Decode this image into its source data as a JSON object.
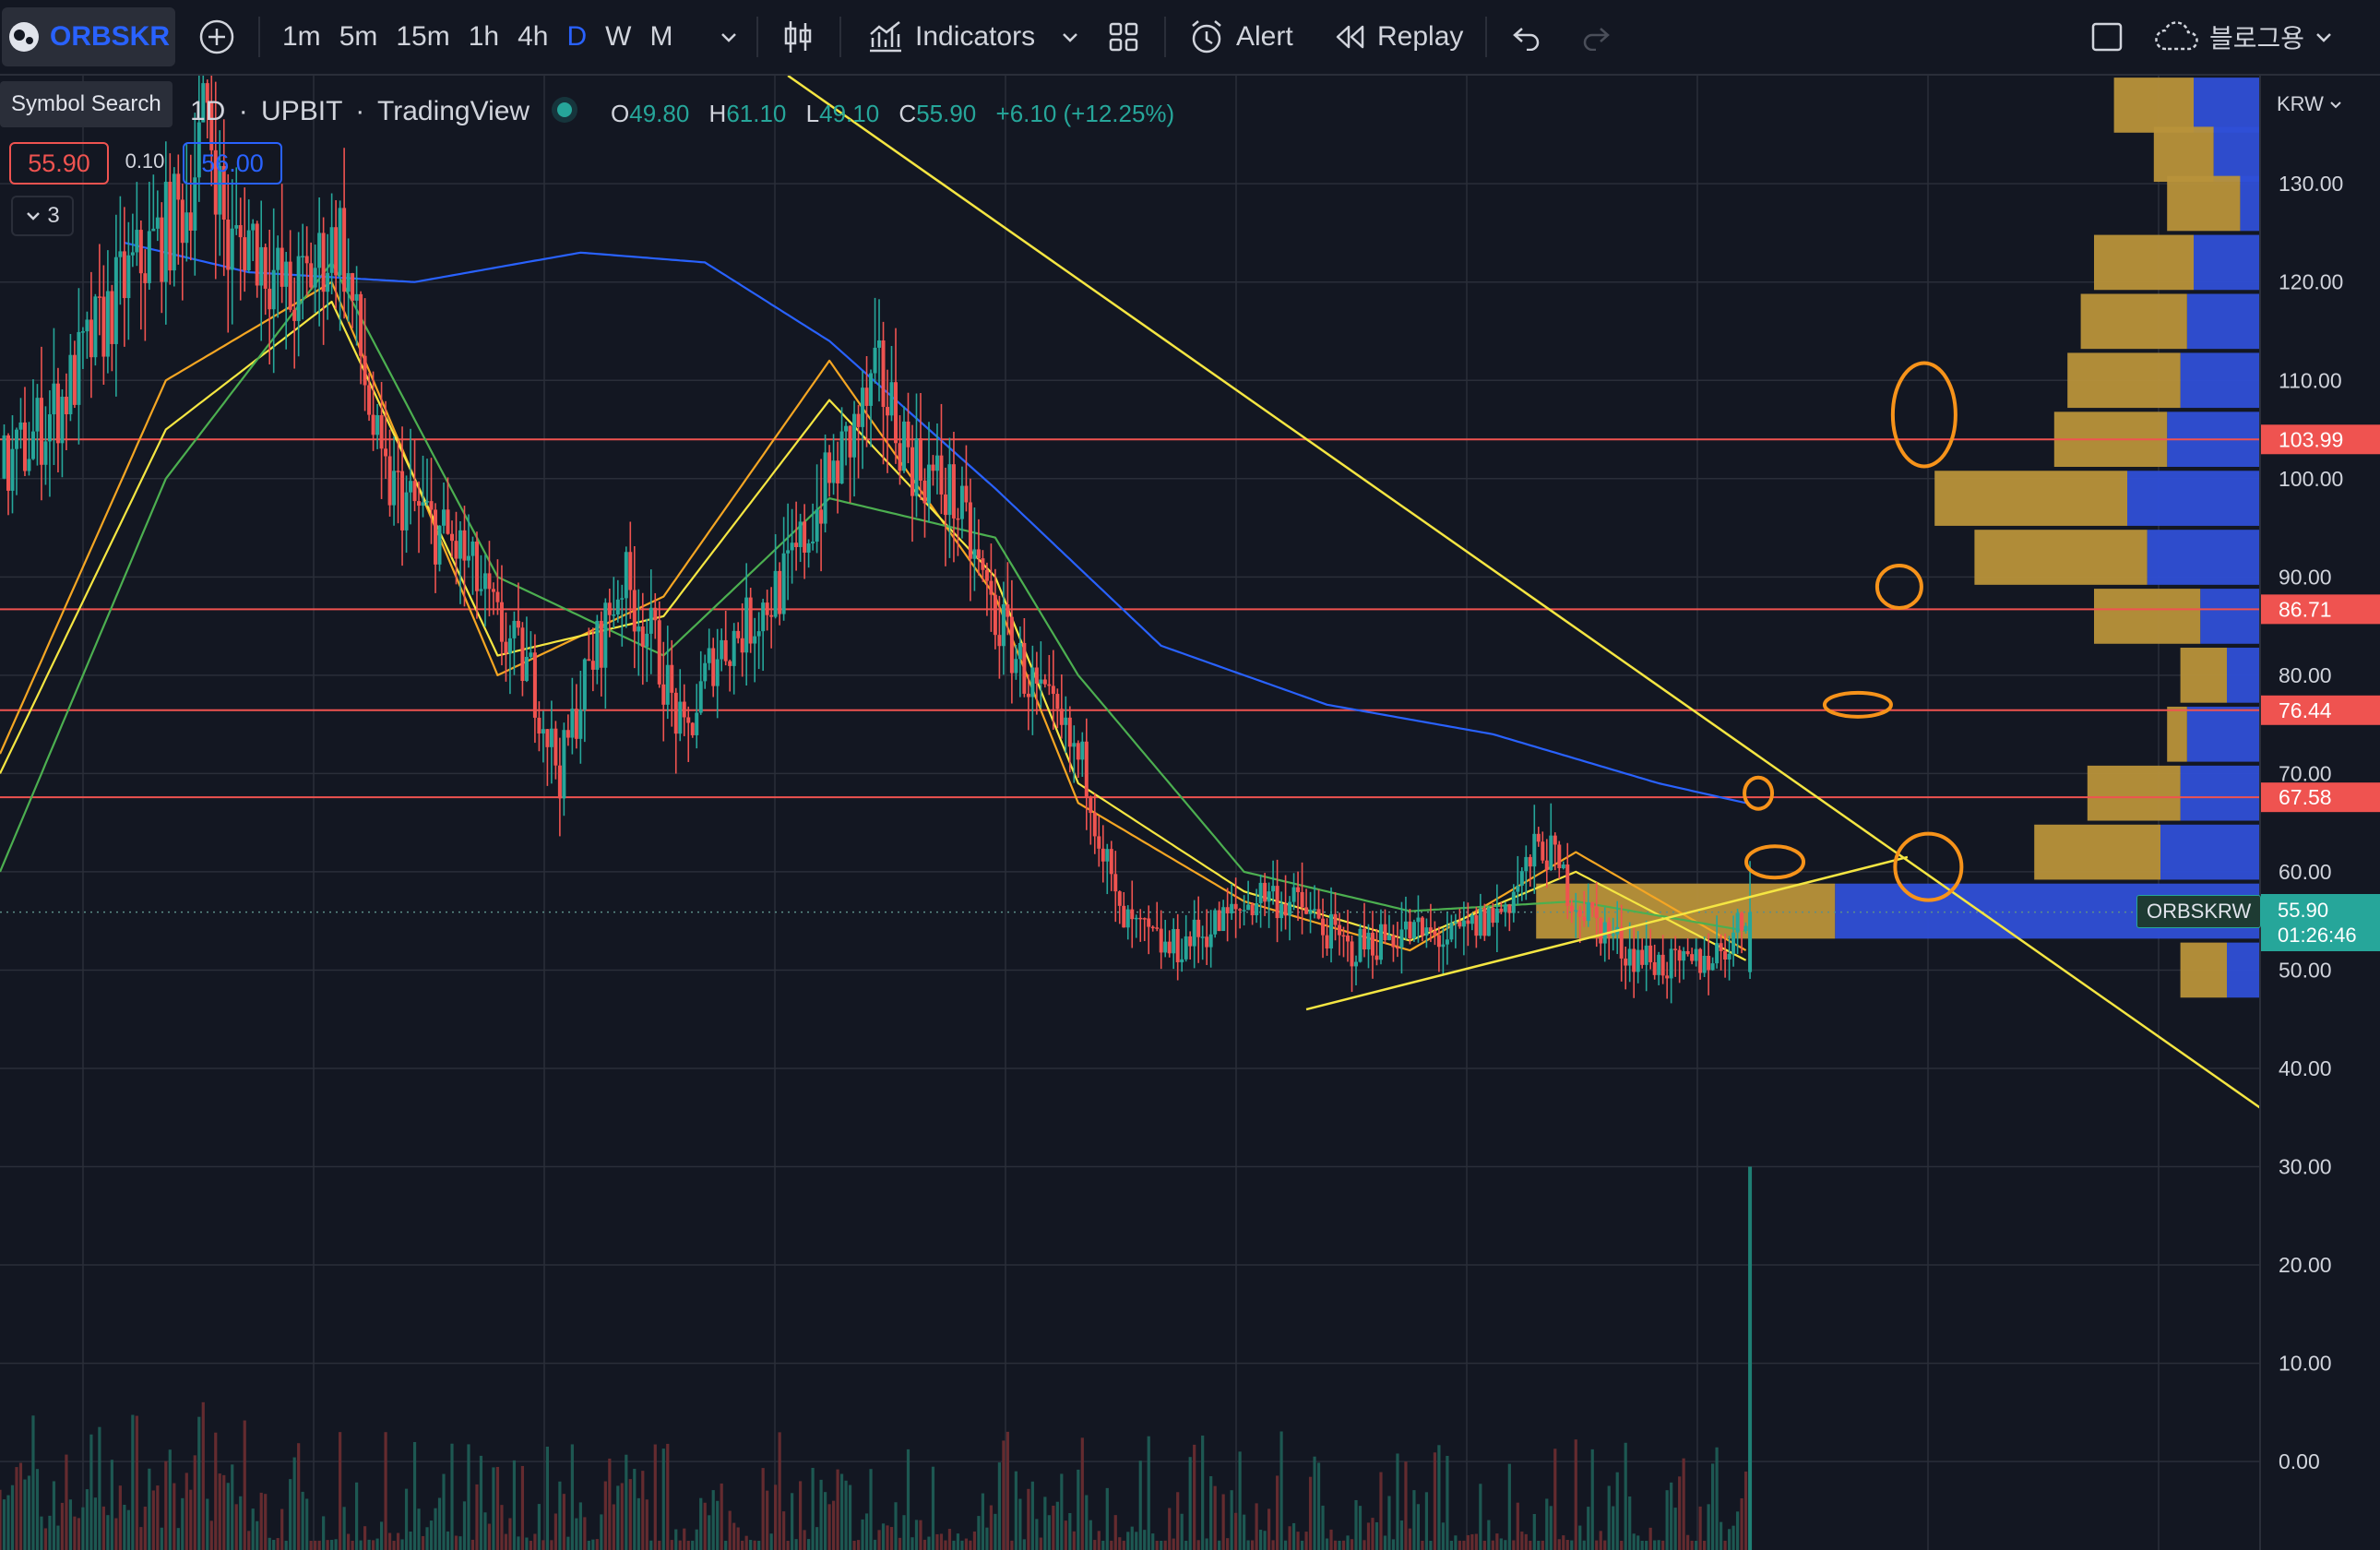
{
  "toolbar": {
    "symbol": "ORBSKR",
    "intervals": [
      "1m",
      "5m",
      "15m",
      "1h",
      "4h",
      "D",
      "W",
      "M"
    ],
    "active_interval": "D",
    "indicators_label": "Indicators",
    "alert_label": "Alert",
    "replay_label": "Replay",
    "layout_label": "블로그용"
  },
  "tooltip": "Symbol Search",
  "legend": {
    "interval": "1D",
    "exchange": "UPBIT",
    "source": "TradingView",
    "open_label": "O",
    "open": "49.80",
    "high_label": "H",
    "high": "61.10",
    "low_label": "L",
    "low": "49.10",
    "close_label": "C",
    "close": "55.90",
    "change": "+6.10 (+12.25%)"
  },
  "order": {
    "sell": "55.90",
    "spread": "0.10",
    "buy": "56.00"
  },
  "indicators_collapsed": "3",
  "price_axis": {
    "currency": "KRW",
    "ticks": [
      "130.00",
      "120.00",
      "110.00",
      "100.00",
      "90.00",
      "80.00",
      "70.00",
      "60.00",
      "50.00",
      "40.00",
      "30.00",
      "20.00",
      "10.00",
      "0.00"
    ],
    "tick_values": [
      130,
      120,
      110,
      100,
      90,
      80,
      70,
      60,
      50,
      40,
      30,
      20,
      10,
      0
    ],
    "level_labels": [
      "103.99",
      "86.71",
      "76.44",
      "67.58"
    ],
    "last_price": "55.90",
    "countdown": "01:26:46",
    "symbol_tag": "ORBSKRW"
  },
  "colors": {
    "background": "#131722",
    "grid": "#2a2e39",
    "up": "#26a69a",
    "down": "#ef5350",
    "level_line": "#ef5350",
    "trend_line": "#f5e642",
    "ma_fast": "#f5a623",
    "ma_mid": "#f5e642",
    "ma_slow": "#4caf50",
    "ma_long": "#2962ff",
    "circle": "#f7931a",
    "vp_gold": "#b8923a",
    "vp_blue": "#2f4fd6",
    "price_tag": "#26a69a",
    "accent_blue": "#2962ff"
  },
  "chart_data": {
    "type": "candlestick",
    "y_unit": "KRW",
    "ylim": [
      -9,
      141
    ],
    "horizontal_levels": [
      103.99,
      86.71,
      76.44,
      67.58
    ],
    "last_price": 55.9,
    "close_path": [
      [
        0,
        100
      ],
      [
        15,
        108
      ],
      [
        30,
        120
      ],
      [
        45,
        128
      ],
      [
        50,
        138
      ],
      [
        55,
        123
      ],
      [
        60,
        125
      ],
      [
        70,
        118
      ],
      [
        82,
        125
      ],
      [
        92,
        100
      ],
      [
        100,
        97
      ],
      [
        112,
        92
      ],
      [
        120,
        85
      ],
      [
        128,
        80
      ],
      [
        135,
        70
      ],
      [
        140,
        78
      ],
      [
        150,
        90
      ],
      [
        158,
        83
      ],
      [
        165,
        73
      ],
      [
        172,
        82
      ],
      [
        180,
        85
      ],
      [
        190,
        90
      ],
      [
        198,
        98
      ],
      [
        205,
        104
      ],
      [
        212,
        110
      ],
      [
        220,
        102
      ],
      [
        230,
        98
      ],
      [
        240,
        86
      ],
      [
        250,
        78
      ],
      [
        262,
        70
      ],
      [
        270,
        55
      ],
      [
        282,
        52
      ],
      [
        295,
        55
      ],
      [
        305,
        58
      ],
      [
        315,
        56
      ],
      [
        325,
        52
      ],
      [
        338,
        54
      ],
      [
        350,
        53
      ],
      [
        362,
        56
      ],
      [
        372,
        63
      ],
      [
        380,
        57
      ],
      [
        392,
        52
      ],
      [
        405,
        50
      ],
      [
        415,
        52
      ],
      [
        422,
        55.9
      ]
    ],
    "moving_averages": [
      {
        "path": [
          [
            0,
            72
          ],
          [
            40,
            110
          ],
          [
            80,
            120
          ],
          [
            120,
            80
          ],
          [
            160,
            88
          ],
          [
            200,
            112
          ],
          [
            240,
            88
          ],
          [
            260,
            67
          ],
          [
            300,
            57
          ],
          [
            340,
            52
          ],
          [
            380,
            62
          ],
          [
            421,
            52
          ]
        ]
      },
      {
        "path": [
          [
            0,
            70
          ],
          [
            40,
            105
          ],
          [
            80,
            118
          ],
          [
            120,
            82
          ],
          [
            160,
            86
          ],
          [
            200,
            108
          ],
          [
            240,
            90
          ],
          [
            260,
            69
          ],
          [
            300,
            58
          ],
          [
            340,
            53
          ],
          [
            380,
            60
          ],
          [
            421,
            51
          ]
        ]
      },
      {
        "path": [
          [
            0,
            60
          ],
          [
            40,
            100
          ],
          [
            80,
            122
          ],
          [
            120,
            90
          ],
          [
            160,
            82
          ],
          [
            200,
            98
          ],
          [
            240,
            94
          ],
          [
            260,
            80
          ],
          [
            300,
            60
          ],
          [
            340,
            56
          ],
          [
            380,
            57
          ],
          [
            421,
            54
          ]
        ]
      },
      {
        "path": [
          [
            30,
            124
          ],
          [
            60,
            121
          ],
          [
            100,
            120
          ],
          [
            140,
            123
          ],
          [
            170,
            122
          ],
          [
            200,
            114
          ],
          [
            240,
            99
          ],
          [
            280,
            83
          ],
          [
            320,
            77
          ],
          [
            360,
            74
          ],
          [
            400,
            69
          ],
          [
            421,
            67
          ]
        ]
      }
    ],
    "trend_lines": [
      {
        "from": [
          190,
          141
        ],
        "to": [
          545,
          36
        ]
      },
      {
        "from": [
          315,
          46
        ],
        "to": [
          460,
          61.5
        ]
      }
    ],
    "marked_zones": [
      {
        "x": 464,
        "y": 106.5
      },
      {
        "x": 458,
        "y": 89
      },
      {
        "x": 448,
        "y": 77
      },
      {
        "x": 424,
        "y": 68
      },
      {
        "x": 428,
        "y": 61
      },
      {
        "x": 465,
        "y": 60.5
      }
    ],
    "volume_profile": [
      {
        "price": 138,
        "up": 12,
        "down": 10
      },
      {
        "price": 133,
        "up": 9,
        "down": 7
      },
      {
        "price": 128,
        "up": 11,
        "down": 3
      },
      {
        "price": 122,
        "up": 15,
        "down": 10
      },
      {
        "price": 116,
        "up": 16,
        "down": 11
      },
      {
        "price": 110,
        "up": 17,
        "down": 12
      },
      {
        "price": 104,
        "up": 17,
        "down": 14
      },
      {
        "price": 98,
        "up": 29,
        "down": 20
      },
      {
        "price": 92,
        "up": 26,
        "down": 17
      },
      {
        "price": 86,
        "up": 16,
        "down": 9
      },
      {
        "price": 80,
        "up": 7,
        "down": 5
      },
      {
        "price": 74,
        "up": 3,
        "down": 11
      },
      {
        "price": 68,
        "up": 14,
        "down": 12
      },
      {
        "price": 62,
        "up": 19,
        "down": 15
      },
      {
        "price": 56,
        "up": 45,
        "down": 64
      },
      {
        "price": 50,
        "up": 7,
        "down": 5
      }
    ],
    "volume_spike_value": 30
  }
}
